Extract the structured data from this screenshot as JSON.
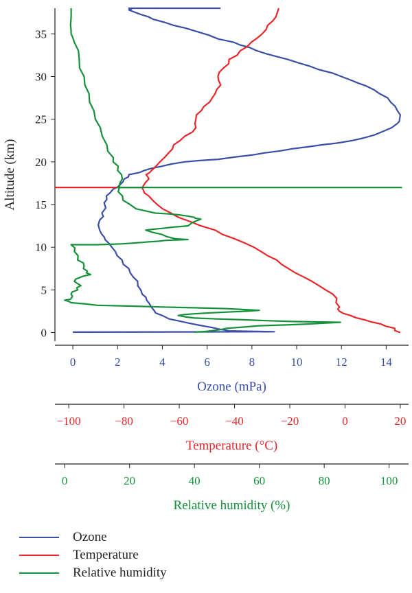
{
  "chart_data": {
    "type": "line",
    "orientation": "vertical-profile",
    "ylabel": "Altitude (km)",
    "ylim": [
      -1,
      38
    ],
    "yticks": [
      0,
      5,
      10,
      15,
      20,
      25,
      30,
      35
    ],
    "colors": {
      "ozone": "#3a4ea8",
      "temperature": "#e8262a",
      "humidity": "#14913a"
    },
    "axes": [
      {
        "key": "ozone",
        "label": "Ozone (mPa)",
        "lim": [
          -0.8,
          15
        ],
        "ticks": [
          0,
          2,
          4,
          6,
          8,
          10,
          12,
          14
        ]
      },
      {
        "key": "temperature",
        "label": "Temperature (°C)",
        "lim": [
          -105,
          23
        ],
        "ticks": [
          -100,
          -80,
          -60,
          -40,
          -20,
          0,
          20
        ],
        "tick_labels": [
          "−100",
          "−80",
          "−60",
          "−40",
          "−20",
          "0",
          "20"
        ]
      },
      {
        "key": "humidity",
        "label": "Relative humidity (%)",
        "lim": [
          -3,
          106
        ],
        "ticks": [
          0,
          20,
          40,
          60,
          80,
          100
        ]
      }
    ],
    "series": [
      {
        "name": "Ozone",
        "axis": "ozone",
        "points": [
          [
            6.6,
            38
          ],
          [
            2.5,
            38
          ],
          [
            2.5,
            37.8
          ],
          [
            3.0,
            37.3
          ],
          [
            3.6,
            36.7
          ],
          [
            4.5,
            36
          ],
          [
            5.5,
            35.3
          ],
          [
            6.5,
            34.4
          ],
          [
            7.2,
            34
          ],
          [
            7.9,
            33.4
          ],
          [
            8.6,
            32.7
          ],
          [
            9.6,
            32
          ],
          [
            10.6,
            31.2
          ],
          [
            11.6,
            30.4
          ],
          [
            12.4,
            29.6
          ],
          [
            13.1,
            28.9
          ],
          [
            13.7,
            28
          ],
          [
            14.2,
            27
          ],
          [
            14.5,
            26
          ],
          [
            14.6,
            25
          ],
          [
            14.5,
            24.5
          ],
          [
            13.8,
            23.5
          ],
          [
            13,
            22.8
          ],
          [
            11.8,
            22.2
          ],
          [
            10.6,
            21.8
          ],
          [
            9.3,
            21.3
          ],
          [
            8,
            20.8
          ],
          [
            6.5,
            20.3
          ],
          [
            5,
            20
          ],
          [
            4,
            19.5
          ],
          [
            3.2,
            19
          ],
          [
            2.5,
            18.5
          ],
          [
            2.3,
            18
          ],
          [
            2.1,
            17.3
          ],
          [
            1.8,
            16.8
          ],
          [
            1.5,
            16
          ],
          [
            1.4,
            15.2
          ],
          [
            1.3,
            14
          ],
          [
            1.2,
            13.2
          ],
          [
            1.2,
            12
          ],
          [
            1.4,
            11.2
          ],
          [
            1.6,
            10.5
          ],
          [
            1.9,
            9.5
          ],
          [
            2.2,
            8.5
          ],
          [
            2.5,
            7.5
          ],
          [
            2.7,
            6.5
          ],
          [
            2.9,
            5.5
          ],
          [
            3.1,
            4.5
          ],
          [
            3.3,
            3.8
          ],
          [
            3.5,
            3
          ],
          [
            3.7,
            2.3
          ],
          [
            4.3,
            1.6
          ],
          [
            5.2,
            1.1
          ],
          [
            6.2,
            0.6
          ],
          [
            7,
            0.2
          ],
          [
            9,
            0.1
          ],
          [
            0,
            0.05
          ]
        ]
      },
      {
        "name": "Temperature",
        "axis": "temperature",
        "points": [
          [
            -24,
            38
          ],
          [
            -25,
            37
          ],
          [
            -28,
            36
          ],
          [
            -30,
            35
          ],
          [
            -34,
            34
          ],
          [
            -38,
            33
          ],
          [
            -42,
            32
          ],
          [
            -44,
            31
          ],
          [
            -46,
            30
          ],
          [
            -45,
            29
          ],
          [
            -47,
            28
          ],
          [
            -49,
            27
          ],
          [
            -52,
            26
          ],
          [
            -54,
            25
          ],
          [
            -54,
            24
          ],
          [
            -58,
            23
          ],
          [
            -62,
            22
          ],
          [
            -64,
            21
          ],
          [
            -67,
            20
          ],
          [
            -70,
            19
          ],
          [
            -72,
            18.5
          ],
          [
            -71,
            18
          ],
          [
            -73,
            17.2
          ],
          [
            -73,
            16.7
          ],
          [
            -71,
            16
          ],
          [
            -68,
            15
          ],
          [
            -63,
            14
          ],
          [
            -56,
            13
          ],
          [
            -47,
            12
          ],
          [
            -40,
            11
          ],
          [
            -33,
            10
          ],
          [
            -28,
            9
          ],
          [
            -23,
            8
          ],
          [
            -18,
            7
          ],
          [
            -12,
            6
          ],
          [
            -7,
            5
          ],
          [
            -3,
            4
          ],
          [
            -2,
            3
          ],
          [
            -2,
            2.5
          ],
          [
            2,
            2
          ],
          [
            7,
            1.5
          ],
          [
            13,
            1
          ],
          [
            18,
            0.5
          ],
          [
            20,
            0
          ]
        ]
      },
      {
        "name": "Relative humidity",
        "axis": "humidity",
        "points": [
          [
            2,
            38
          ],
          [
            2,
            37
          ],
          [
            1.8,
            36
          ],
          [
            2,
            35
          ],
          [
            3,
            34
          ],
          [
            4.5,
            32
          ],
          [
            6,
            30
          ],
          [
            7.5,
            28
          ],
          [
            9,
            26
          ],
          [
            11,
            24
          ],
          [
            13,
            22
          ],
          [
            15,
            20.5
          ],
          [
            16.5,
            19.5
          ],
          [
            17.5,
            18.5
          ],
          [
            17,
            17.5
          ],
          [
            16.5,
            16.5
          ],
          [
            18,
            15.5
          ],
          [
            22,
            14.5
          ],
          [
            28,
            14
          ],
          [
            35,
            13.8
          ],
          [
            40,
            13.5
          ],
          [
            42,
            13.3
          ],
          [
            38,
            12.5
          ],
          [
            30,
            12.2
          ],
          [
            25,
            12
          ],
          [
            30,
            11.5
          ],
          [
            34,
            11
          ],
          [
            38,
            10.9
          ],
          [
            31,
            10.8
          ],
          [
            25,
            10.6
          ],
          [
            18,
            10.4
          ],
          [
            10,
            10.3
          ],
          [
            2,
            10.3
          ],
          [
            3,
            9.5
          ],
          [
            4,
            8.5
          ],
          [
            6,
            7.8
          ],
          [
            7,
            7.2
          ],
          [
            8,
            6.8
          ],
          [
            5,
            6.5
          ],
          [
            3,
            6
          ],
          [
            5,
            5.5
          ],
          [
            4,
            5
          ],
          [
            2,
            4.5
          ],
          [
            2,
            4
          ],
          [
            0,
            3.8
          ],
          [
            2,
            3.5
          ],
          [
            10,
            3.2
          ],
          [
            30,
            3
          ],
          [
            50,
            2.8
          ],
          [
            60,
            2.6
          ],
          [
            50,
            2.4
          ],
          [
            40,
            2.2
          ],
          [
            35,
            2
          ],
          [
            40,
            1.7
          ],
          [
            55,
            1.5
          ],
          [
            70,
            1.3
          ],
          [
            85,
            1.2
          ],
          [
            75,
            1
          ],
          [
            60,
            0.8
          ],
          [
            50,
            0.5
          ],
          [
            45,
            0.2
          ],
          [
            40,
            0.05
          ]
        ]
      }
    ],
    "markers": [
      {
        "name": "Temperature",
        "axis": "temperature",
        "y": 17,
        "x_from": -105,
        "x_to": -73
      },
      {
        "name": "Relative humidity",
        "axis": "humidity",
        "y": 17,
        "x_from": 16,
        "x_to": 104
      }
    ],
    "legend": {
      "placement": "bottom-left",
      "entries": [
        {
          "label": "Ozone",
          "series": "ozone"
        },
        {
          "label": "Temperature",
          "series": "temperature"
        },
        {
          "label": "Relative humidity",
          "series": "humidity"
        }
      ]
    }
  }
}
